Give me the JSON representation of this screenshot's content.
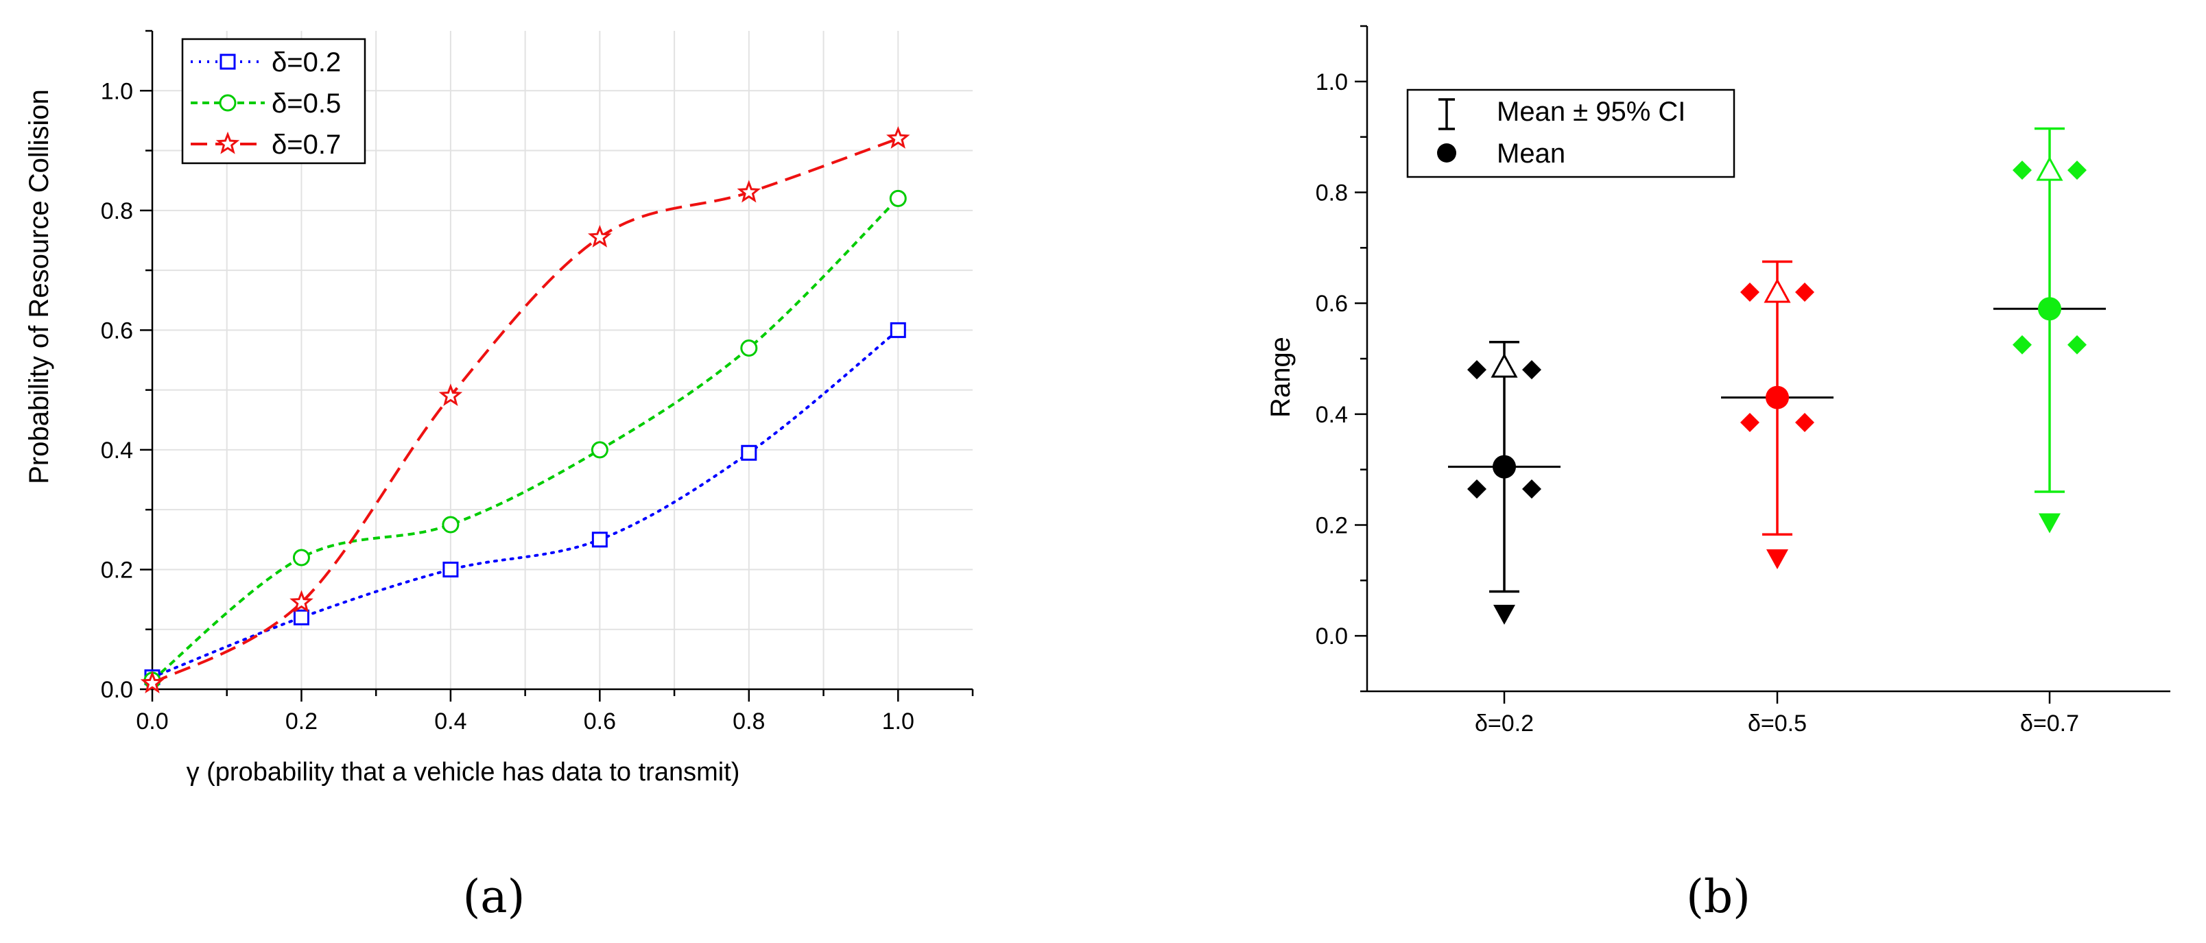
{
  "panels": {
    "a": {
      "label": "(a)"
    },
    "b": {
      "label": "(b)"
    }
  },
  "chart_data": [
    {
      "type": "line",
      "title": "",
      "xlabel": "γ (probability that a vehicle has data to transmit)",
      "ylabel": "Probability of Resource Collision",
      "xlim": [
        0,
        1.1
      ],
      "ylim": [
        0,
        1.1
      ],
      "xticks": [
        "0.0",
        "0.2",
        "0.4",
        "0.6",
        "0.8",
        "1.0"
      ],
      "yticks": [
        "0.0",
        "0.2",
        "0.4",
        "0.6",
        "0.8",
        "1.0"
      ],
      "grid": true,
      "legend_position": "top-left",
      "x": [
        0,
        0.2,
        0.4,
        0.6,
        0.8,
        1.0
      ],
      "series": [
        {
          "name": "δ=0.2",
          "color": "#0000ff",
          "marker": "square",
          "style": "dotted",
          "values": [
            0.02,
            0.12,
            0.2,
            0.25,
            0.395,
            0.6
          ]
        },
        {
          "name": "δ=0.5",
          "color": "#00cc00",
          "marker": "circle",
          "style": "short-dash",
          "values": [
            0.015,
            0.22,
            0.275,
            0.4,
            0.57,
            0.82
          ]
        },
        {
          "name": "δ=0.7",
          "color": "#ee1111",
          "marker": "star",
          "style": "dashed",
          "values": [
            0.01,
            0.145,
            0.49,
            0.755,
            0.83,
            0.92
          ]
        }
      ]
    },
    {
      "type": "scatter",
      "title": "",
      "xlabel": "",
      "ylabel": "Range",
      "ylim": [
        -0.1,
        1.1
      ],
      "yticks": [
        "0.0",
        "0.2",
        "0.4",
        "0.6",
        "0.8",
        "1.0"
      ],
      "grid": false,
      "legend_position": "top-left",
      "legend": {
        "ci_label": "Mean ± 95% CI",
        "mean_label": "Mean"
      },
      "categories": [
        "δ=0.2",
        "δ=0.5",
        "δ=0.7"
      ],
      "groups": [
        {
          "name": "δ=0.2",
          "color": "#000000",
          "mean": 0.305,
          "ci_low": 0.08,
          "ci_high": 0.53,
          "max": 0.485,
          "min": 0.04,
          "points": [
            0.48,
            0.48,
            0.265,
            0.265
          ]
        },
        {
          "name": "δ=0.5",
          "color": "#ff0000",
          "mean": 0.43,
          "ci_low": 0.183,
          "ci_high": 0.675,
          "max": 0.62,
          "min": 0.14,
          "points": [
            0.62,
            0.62,
            0.385,
            0.385
          ]
        },
        {
          "name": "δ=0.7",
          "color": "#11ee11",
          "mean": 0.59,
          "ci_low": 0.26,
          "ci_high": 0.915,
          "max": 0.84,
          "min": 0.205,
          "points": [
            0.84,
            0.84,
            0.525,
            0.525
          ]
        }
      ]
    }
  ]
}
